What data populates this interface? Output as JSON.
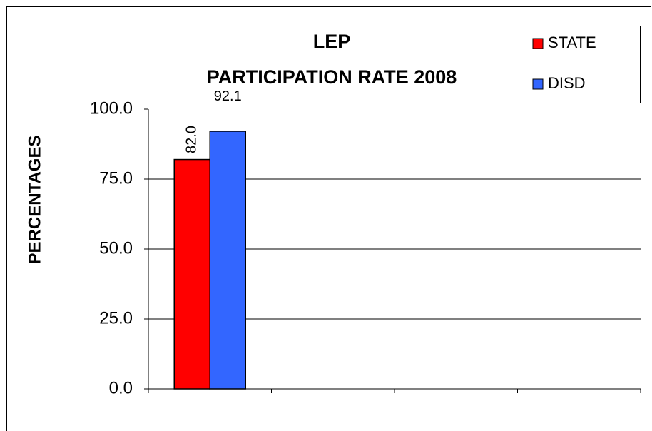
{
  "chart_data": {
    "type": "bar",
    "title": [
      "LEP",
      "PARTICIPATION RATE 2008"
    ],
    "y_axis_label": "PERCENTAGES",
    "categories": [
      null,
      null,
      null,
      null
    ],
    "series": [
      {
        "name": "STATE",
        "color": "#ff0000",
        "values": [
          82.0,
          null,
          null,
          null
        ],
        "value_labels": [
          "82.0",
          null,
          null,
          null
        ]
      },
      {
        "name": "DISD",
        "color": "#3366ff",
        "values": [
          92.1,
          null,
          null,
          null
        ],
        "value_labels": [
          "92.1",
          null,
          null,
          null
        ]
      }
    ],
    "ylim": [
      0,
      100
    ],
    "yticks": [
      {
        "value": 0,
        "label": "0.0"
      },
      {
        "value": 25,
        "label": "25.0"
      },
      {
        "value": 50,
        "label": "50.0"
      },
      {
        "value": 75,
        "label": "75.0"
      },
      {
        "value": 100,
        "label": "100.0"
      }
    ],
    "grid": true,
    "legend": "top-right"
  }
}
